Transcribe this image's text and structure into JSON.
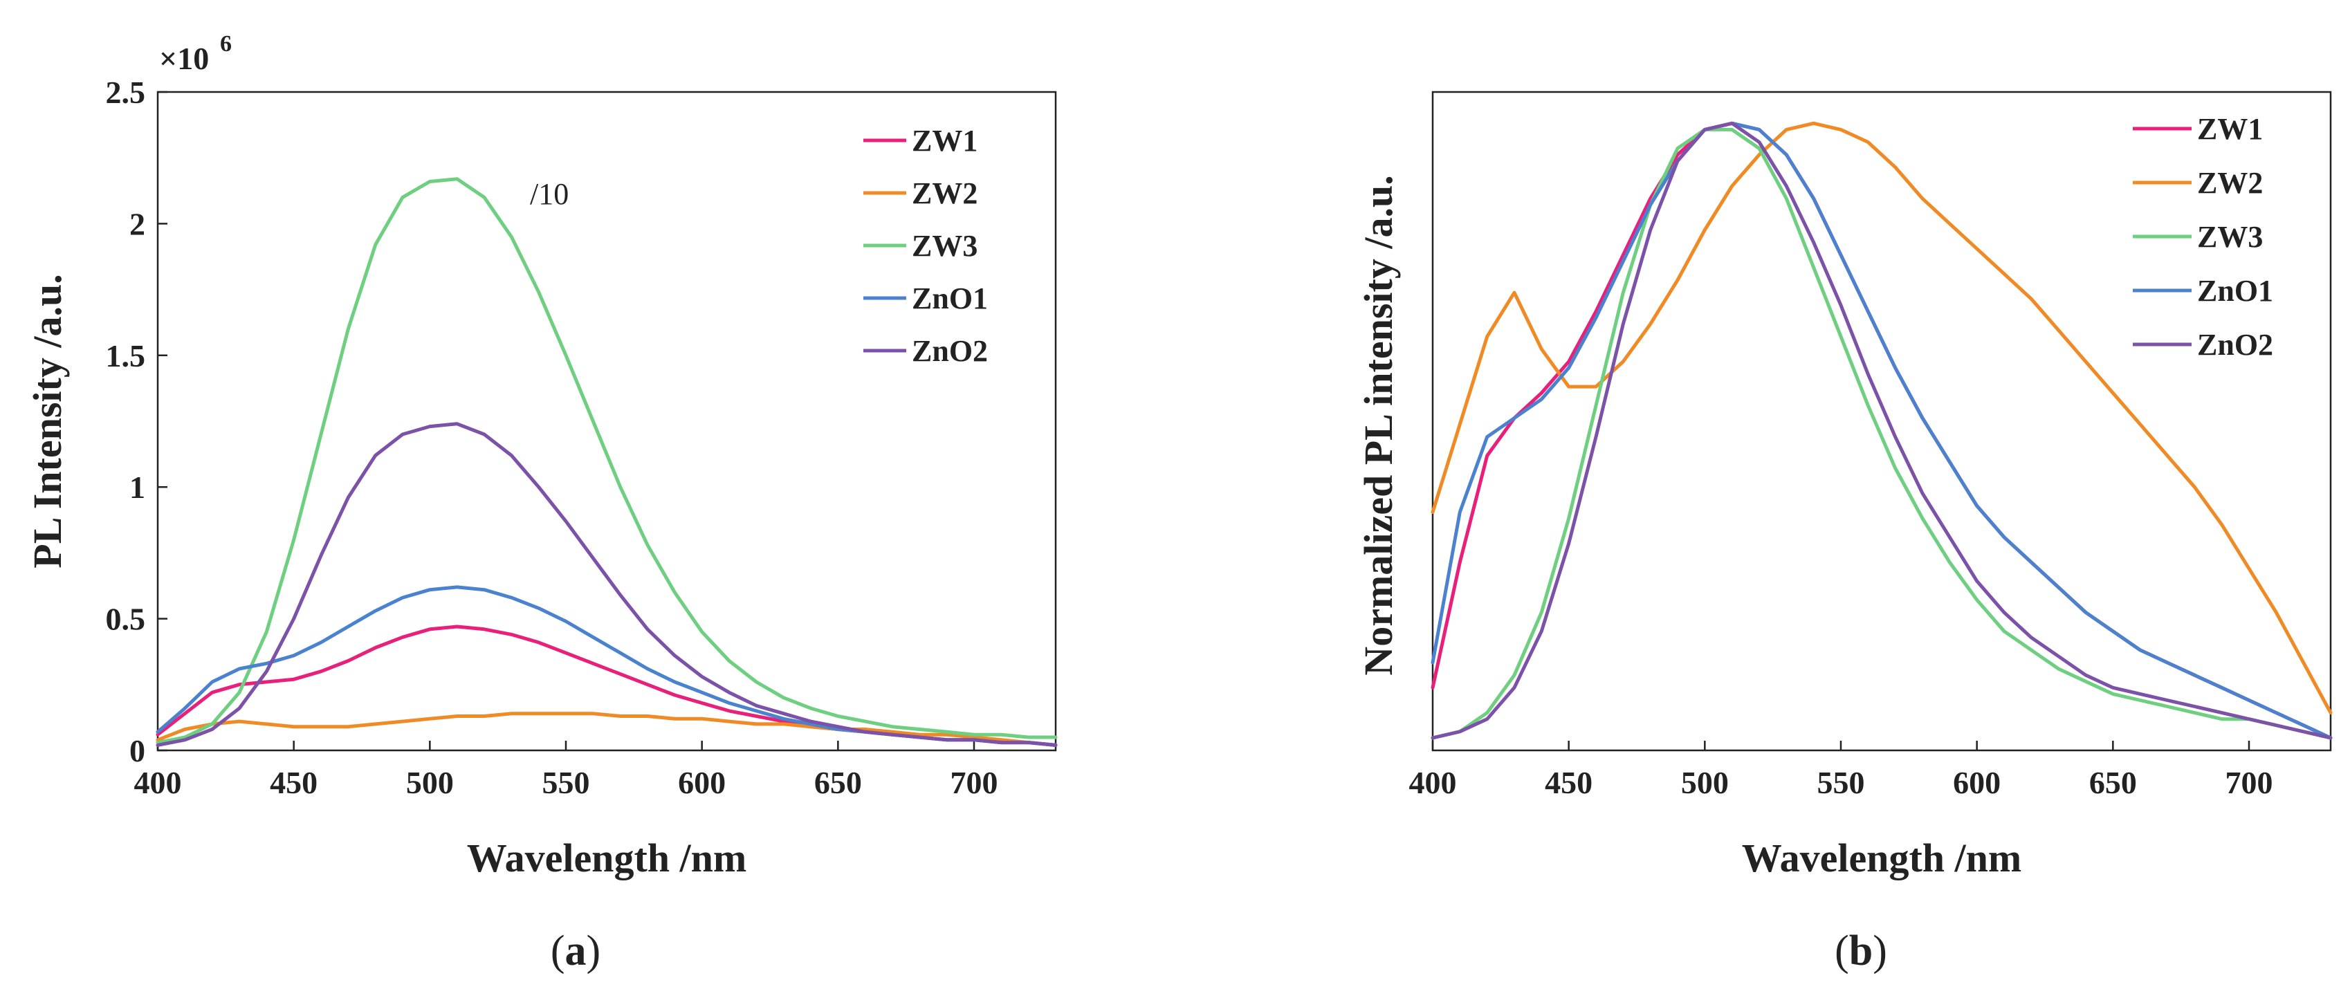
{
  "colors": {
    "ZW1": "#e8207a",
    "ZW2": "#f08a24",
    "ZW3": "#6dcf7f",
    "ZnO1": "#4a82cf",
    "ZnO2": "#7b52a8"
  },
  "chart_data": [
    {
      "type": "line",
      "panel_label": "a",
      "title": "",
      "xlabel": "Wavelength /nm",
      "ylabel": "PL Intensity /a.u.",
      "xlim": [
        400,
        730
      ],
      "ylim": [
        0,
        2.5
      ],
      "y_multiplier": "×10",
      "y_multiplier_exponent": "6",
      "xticks": [
        400,
        450,
        500,
        550,
        600,
        650,
        700
      ],
      "yticks": [
        0,
        0.5,
        1,
        1.5,
        2,
        2.5
      ],
      "ytick_labels": [
        "0",
        "0.5",
        "1",
        "1.5",
        "2",
        "2.5"
      ],
      "annotation": "/10",
      "legend": [
        "ZW1",
        "ZW2",
        "ZW3",
        "ZnO1",
        "ZnO2"
      ],
      "legend_position": "top-right",
      "x": [
        400,
        410,
        420,
        430,
        440,
        450,
        460,
        470,
        480,
        490,
        500,
        510,
        520,
        530,
        540,
        550,
        560,
        570,
        580,
        590,
        600,
        610,
        620,
        630,
        640,
        650,
        660,
        670,
        680,
        690,
        700,
        710,
        720,
        730
      ],
      "series": [
        {
          "name": "ZW1",
          "values": [
            0.06,
            0.14,
            0.22,
            0.25,
            0.26,
            0.27,
            0.3,
            0.34,
            0.39,
            0.43,
            0.46,
            0.47,
            0.46,
            0.44,
            0.41,
            0.37,
            0.33,
            0.29,
            0.25,
            0.21,
            0.18,
            0.15,
            0.13,
            0.11,
            0.09,
            0.08,
            0.07,
            0.06,
            0.05,
            0.04,
            0.04,
            0.03,
            0.03,
            0.02
          ]
        },
        {
          "name": "ZW2",
          "values": [
            0.04,
            0.08,
            0.1,
            0.11,
            0.1,
            0.09,
            0.09,
            0.09,
            0.1,
            0.11,
            0.12,
            0.13,
            0.13,
            0.14,
            0.14,
            0.14,
            0.14,
            0.13,
            0.13,
            0.12,
            0.12,
            0.11,
            0.1,
            0.1,
            0.09,
            0.08,
            0.08,
            0.07,
            0.06,
            0.06,
            0.05,
            0.04,
            0.03,
            0.02
          ]
        },
        {
          "name": "ZW3",
          "values": [
            0.03,
            0.05,
            0.1,
            0.22,
            0.45,
            0.8,
            1.2,
            1.6,
            1.92,
            2.1,
            2.16,
            2.17,
            2.1,
            1.95,
            1.74,
            1.5,
            1.25,
            1.0,
            0.78,
            0.6,
            0.45,
            0.34,
            0.26,
            0.2,
            0.16,
            0.13,
            0.11,
            0.09,
            0.08,
            0.07,
            0.06,
            0.06,
            0.05,
            0.05
          ]
        },
        {
          "name": "ZnO1",
          "values": [
            0.07,
            0.16,
            0.26,
            0.31,
            0.33,
            0.36,
            0.41,
            0.47,
            0.53,
            0.58,
            0.61,
            0.62,
            0.61,
            0.58,
            0.54,
            0.49,
            0.43,
            0.37,
            0.31,
            0.26,
            0.22,
            0.18,
            0.15,
            0.12,
            0.1,
            0.08,
            0.07,
            0.06,
            0.05,
            0.04,
            0.04,
            0.03,
            0.03,
            0.02
          ]
        },
        {
          "name": "ZnO2",
          "values": [
            0.02,
            0.04,
            0.08,
            0.16,
            0.3,
            0.5,
            0.74,
            0.96,
            1.12,
            1.2,
            1.23,
            1.24,
            1.2,
            1.12,
            1.0,
            0.87,
            0.73,
            0.59,
            0.46,
            0.36,
            0.28,
            0.22,
            0.17,
            0.14,
            0.11,
            0.09,
            0.07,
            0.06,
            0.05,
            0.04,
            0.04,
            0.03,
            0.03,
            0.02
          ]
        }
      ]
    },
    {
      "type": "line",
      "panel_label": "b",
      "title": "",
      "xlabel": "Wavelength /nm",
      "ylabel": "Normalized PL intensity /a.u.",
      "xlim": [
        400,
        730
      ],
      "ylim": [
        0,
        1.05
      ],
      "xticks": [
        400,
        450,
        500,
        550,
        600,
        650,
        700
      ],
      "yticks": [],
      "legend": [
        "ZW1",
        "ZW2",
        "ZW3",
        "ZnO1",
        "ZnO2"
      ],
      "legend_position": "top-right",
      "x": [
        400,
        410,
        420,
        430,
        440,
        450,
        460,
        470,
        480,
        490,
        500,
        510,
        520,
        530,
        540,
        550,
        560,
        570,
        580,
        590,
        600,
        610,
        620,
        630,
        640,
        650,
        660,
        670,
        680,
        690,
        700,
        710,
        720,
        730
      ],
      "series": [
        {
          "name": "ZW1",
          "values": [
            0.1,
            0.3,
            0.47,
            0.53,
            0.57,
            0.62,
            0.7,
            0.79,
            0.88,
            0.95,
            0.99,
            1.0,
            0.99,
            0.95,
            0.88,
            0.79,
            0.7,
            0.61,
            0.53,
            0.46,
            0.39,
            0.34,
            0.3,
            0.26,
            0.22,
            0.19,
            0.16,
            0.14,
            0.12,
            0.1,
            0.08,
            0.06,
            0.04,
            0.02
          ]
        },
        {
          "name": "ZW2",
          "values": [
            0.38,
            0.52,
            0.66,
            0.73,
            0.64,
            0.58,
            0.58,
            0.62,
            0.68,
            0.75,
            0.83,
            0.9,
            0.95,
            0.99,
            1.0,
            0.99,
            0.97,
            0.93,
            0.88,
            0.84,
            0.8,
            0.76,
            0.72,
            0.67,
            0.62,
            0.57,
            0.52,
            0.47,
            0.42,
            0.36,
            0.29,
            0.22,
            0.14,
            0.06
          ]
        },
        {
          "name": "ZW3",
          "values": [
            0.02,
            0.03,
            0.06,
            0.12,
            0.22,
            0.37,
            0.55,
            0.73,
            0.87,
            0.96,
            0.99,
            0.99,
            0.96,
            0.88,
            0.77,
            0.66,
            0.55,
            0.45,
            0.37,
            0.3,
            0.24,
            0.19,
            0.16,
            0.13,
            0.11,
            0.09,
            0.08,
            0.07,
            0.06,
            0.05,
            0.05,
            0.04,
            0.03,
            0.02
          ]
        },
        {
          "name": "ZnO1",
          "values": [
            0.14,
            0.38,
            0.5,
            0.53,
            0.56,
            0.61,
            0.69,
            0.78,
            0.87,
            0.94,
            0.99,
            1.0,
            0.99,
            0.95,
            0.88,
            0.79,
            0.7,
            0.61,
            0.53,
            0.46,
            0.39,
            0.34,
            0.3,
            0.26,
            0.22,
            0.19,
            0.16,
            0.14,
            0.12,
            0.1,
            0.08,
            0.06,
            0.04,
            0.02
          ]
        },
        {
          "name": "ZnO2",
          "values": [
            0.02,
            0.03,
            0.05,
            0.1,
            0.19,
            0.33,
            0.5,
            0.68,
            0.83,
            0.94,
            0.99,
            1.0,
            0.97,
            0.9,
            0.81,
            0.71,
            0.6,
            0.5,
            0.41,
            0.34,
            0.27,
            0.22,
            0.18,
            0.15,
            0.12,
            0.1,
            0.09,
            0.08,
            0.07,
            0.06,
            0.05,
            0.04,
            0.03,
            0.02
          ]
        }
      ]
    }
  ]
}
